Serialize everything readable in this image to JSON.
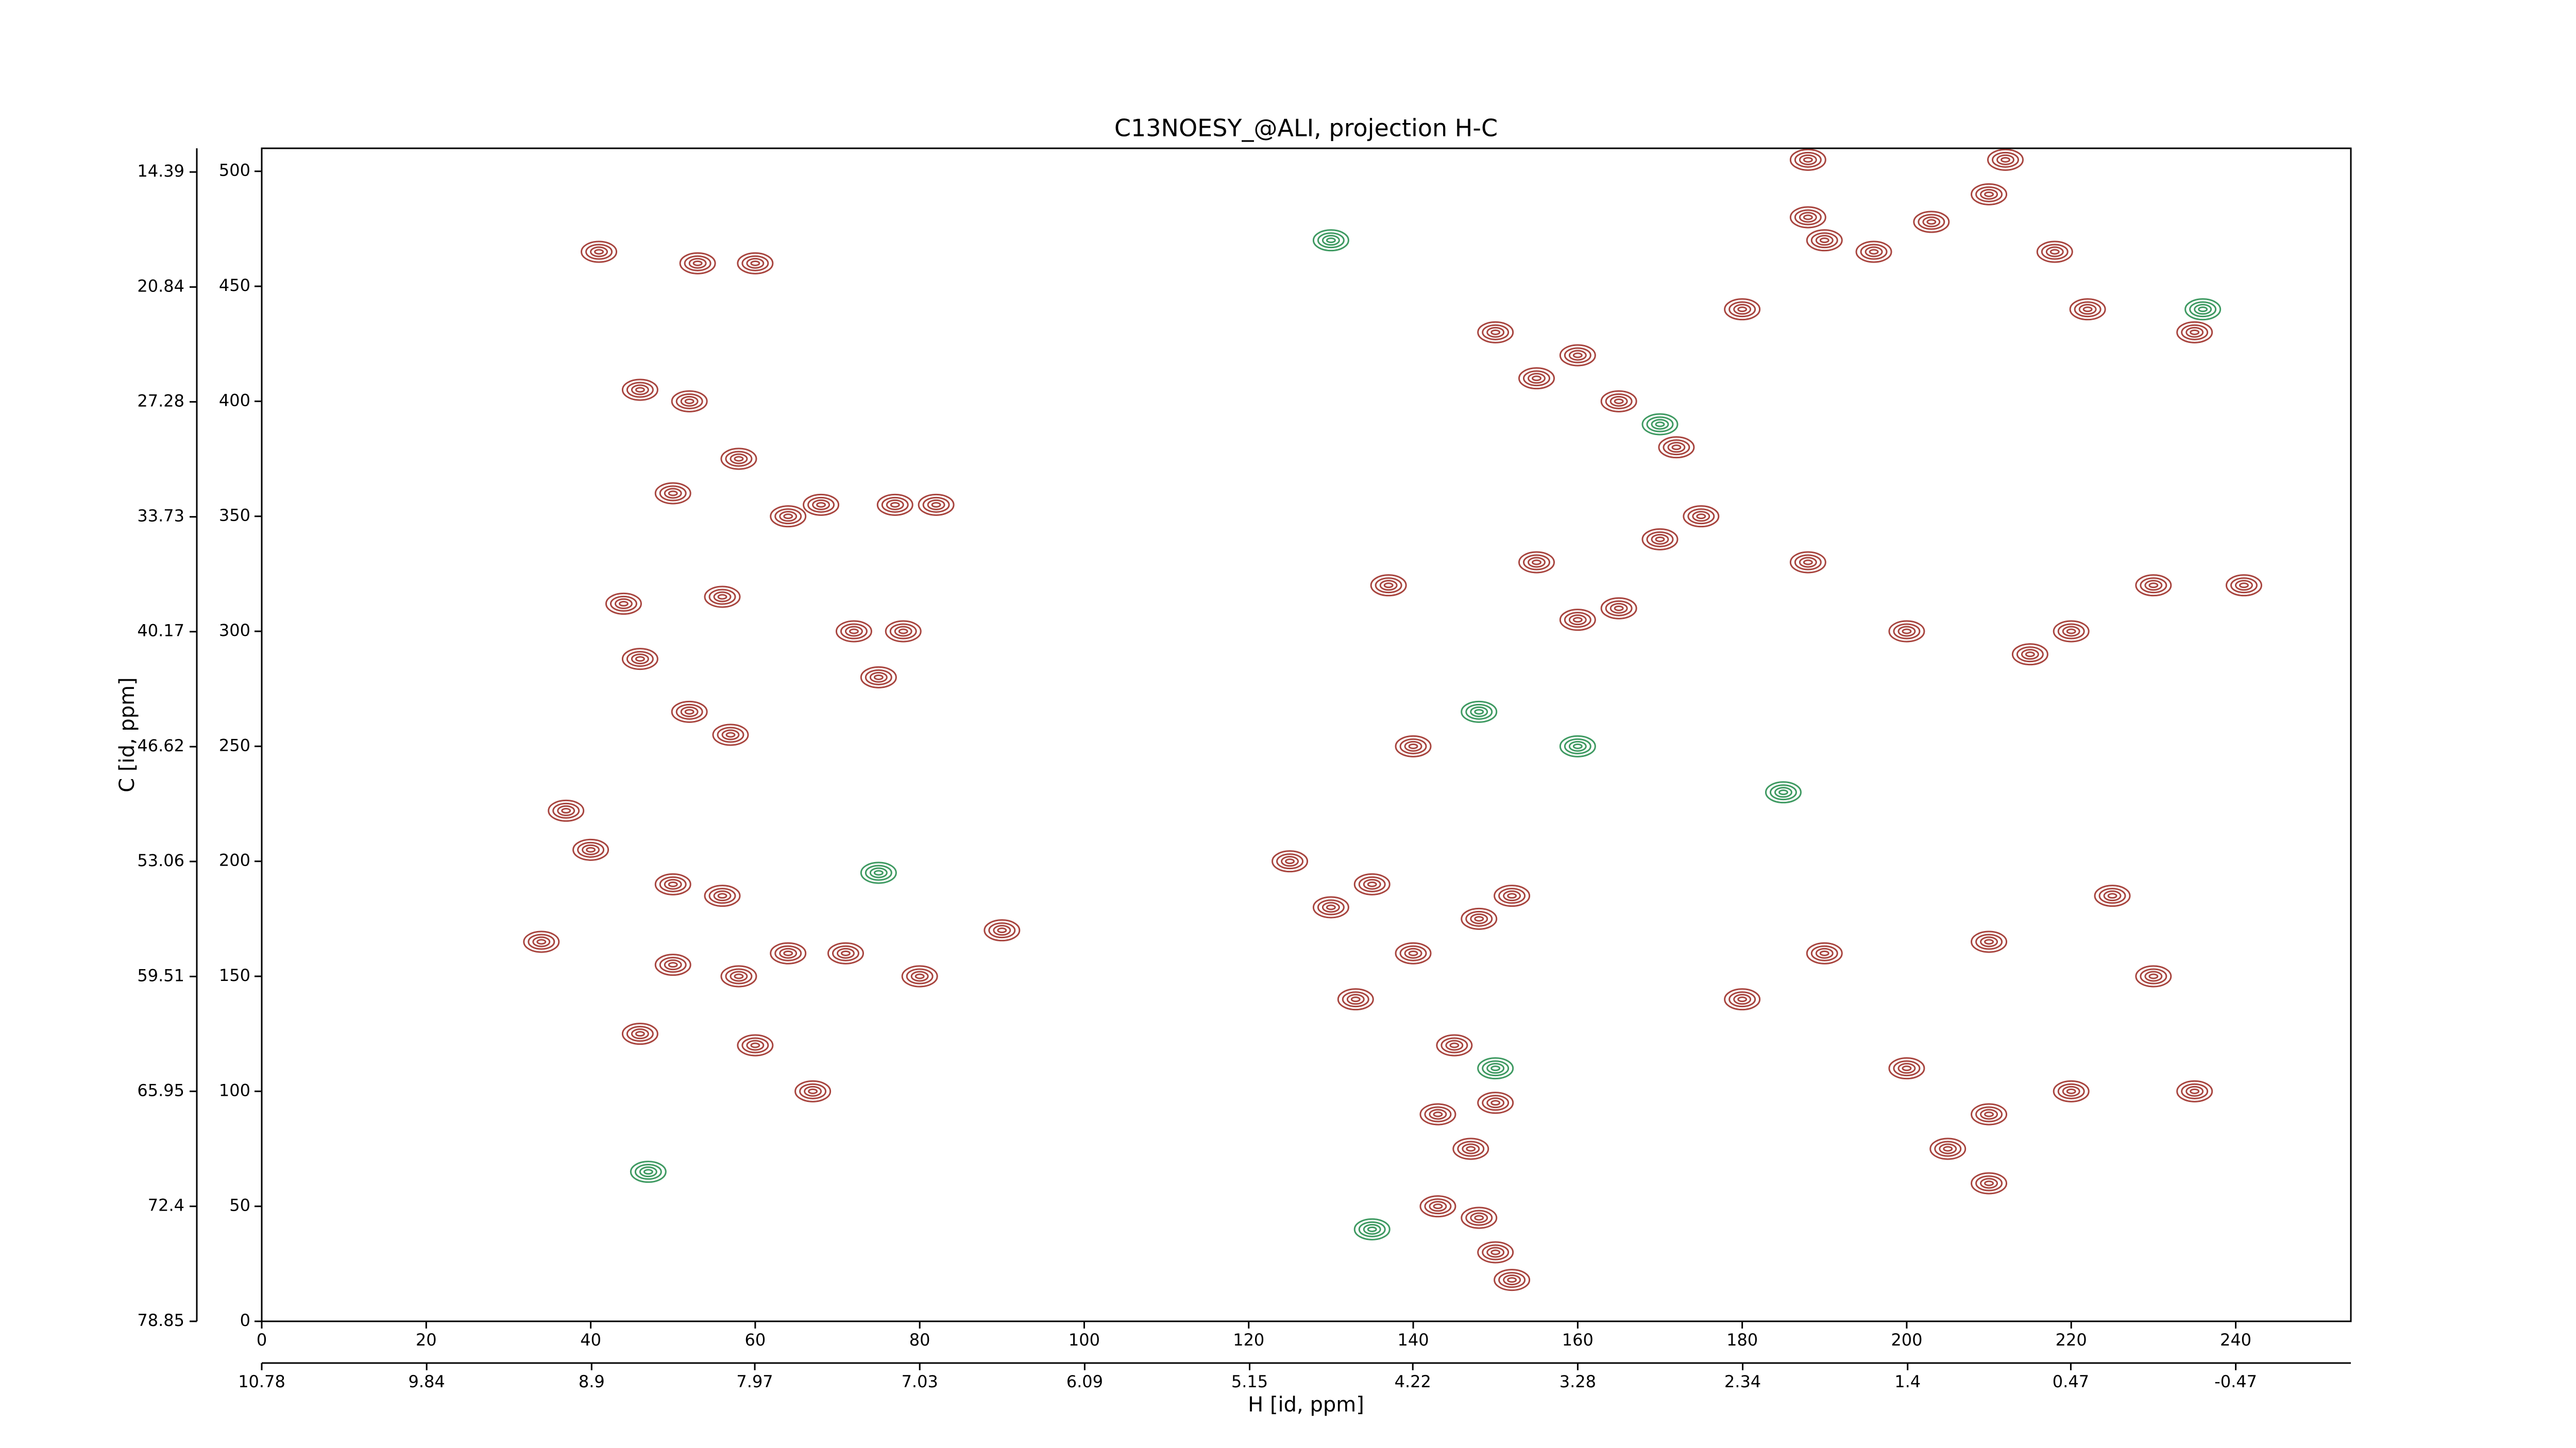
{
  "chart_data": {
    "type": "contour",
    "title": "C13NOESY_@ALI, projection H-C",
    "xlabel": "H [id, ppm]",
    "ylabel": "C [id, ppm]",
    "xlim": [
      0,
      254
    ],
    "xticks": [
      0,
      20,
      40,
      60,
      80,
      100,
      120,
      140,
      160,
      180,
      200,
      220,
      240
    ],
    "x2lim": [
      10.78,
      -1.126
    ],
    "x2ticks": [
      10.78,
      9.84,
      8.9,
      7.97,
      7.03,
      6.09,
      5.15,
      4.22,
      3.28,
      2.34,
      1.4,
      0.47,
      -0.47
    ],
    "ylim": [
      0,
      510
    ],
    "yticks": [
      0,
      50,
      100,
      150,
      200,
      250,
      300,
      350,
      400,
      450,
      500
    ],
    "y2lim": [
      78.85,
      13.06
    ],
    "y2ticks": [
      78.85,
      72.4,
      65.95,
      59.51,
      53.06,
      46.62,
      40.17,
      33.73,
      27.28,
      20.84,
      14.39
    ],
    "series": [
      {
        "color": "#a8453f",
        "x": [
          41,
          53,
          60,
          37,
          46,
          52,
          58,
          50,
          68,
          64,
          77,
          82,
          44,
          56,
          72,
          78,
          46,
          52,
          57,
          75,
          40,
          50,
          56,
          34,
          50,
          58,
          64,
          71,
          80,
          46,
          60,
          67,
          90,
          125,
          130,
          135,
          140,
          148,
          152,
          133,
          145,
          150,
          143,
          147,
          143,
          148,
          150,
          152,
          137,
          140,
          155,
          160,
          165,
          170,
          175,
          172,
          165,
          155,
          150,
          160,
          180,
          190,
          196,
          203,
          210,
          218,
          222,
          235,
          188,
          200,
          215,
          220,
          230,
          241,
          190,
          210,
          225,
          230,
          200,
          210,
          220,
          235,
          205,
          210,
          180,
          188,
          188,
          212
        ],
        "y": [
          465,
          460,
          460,
          222,
          405,
          400,
          375,
          360,
          355,
          350,
          355,
          355,
          312,
          315,
          300,
          300,
          288,
          265,
          255,
          280,
          205,
          190,
          185,
          165,
          155,
          150,
          160,
          160,
          150,
          125,
          120,
          100,
          170,
          200,
          180,
          190,
          160,
          175,
          185,
          140,
          120,
          95,
          90,
          75,
          50,
          45,
          30,
          18,
          320,
          250,
          330,
          305,
          310,
          340,
          350,
          380,
          400,
          410,
          430,
          420,
          440,
          470,
          465,
          478,
          490,
          465,
          440,
          430,
          330,
          300,
          290,
          300,
          320,
          320,
          160,
          165,
          185,
          150,
          110,
          90,
          100,
          100,
          75,
          60,
          140,
          480,
          505,
          505
        ]
      },
      {
        "color": "#3f9a62",
        "x": [
          75,
          47,
          148,
          150,
          160,
          185,
          170,
          130,
          236,
          135
        ],
        "y": [
          195,
          65,
          265,
          110,
          250,
          230,
          390,
          470,
          440,
          40
        ]
      }
    ]
  }
}
